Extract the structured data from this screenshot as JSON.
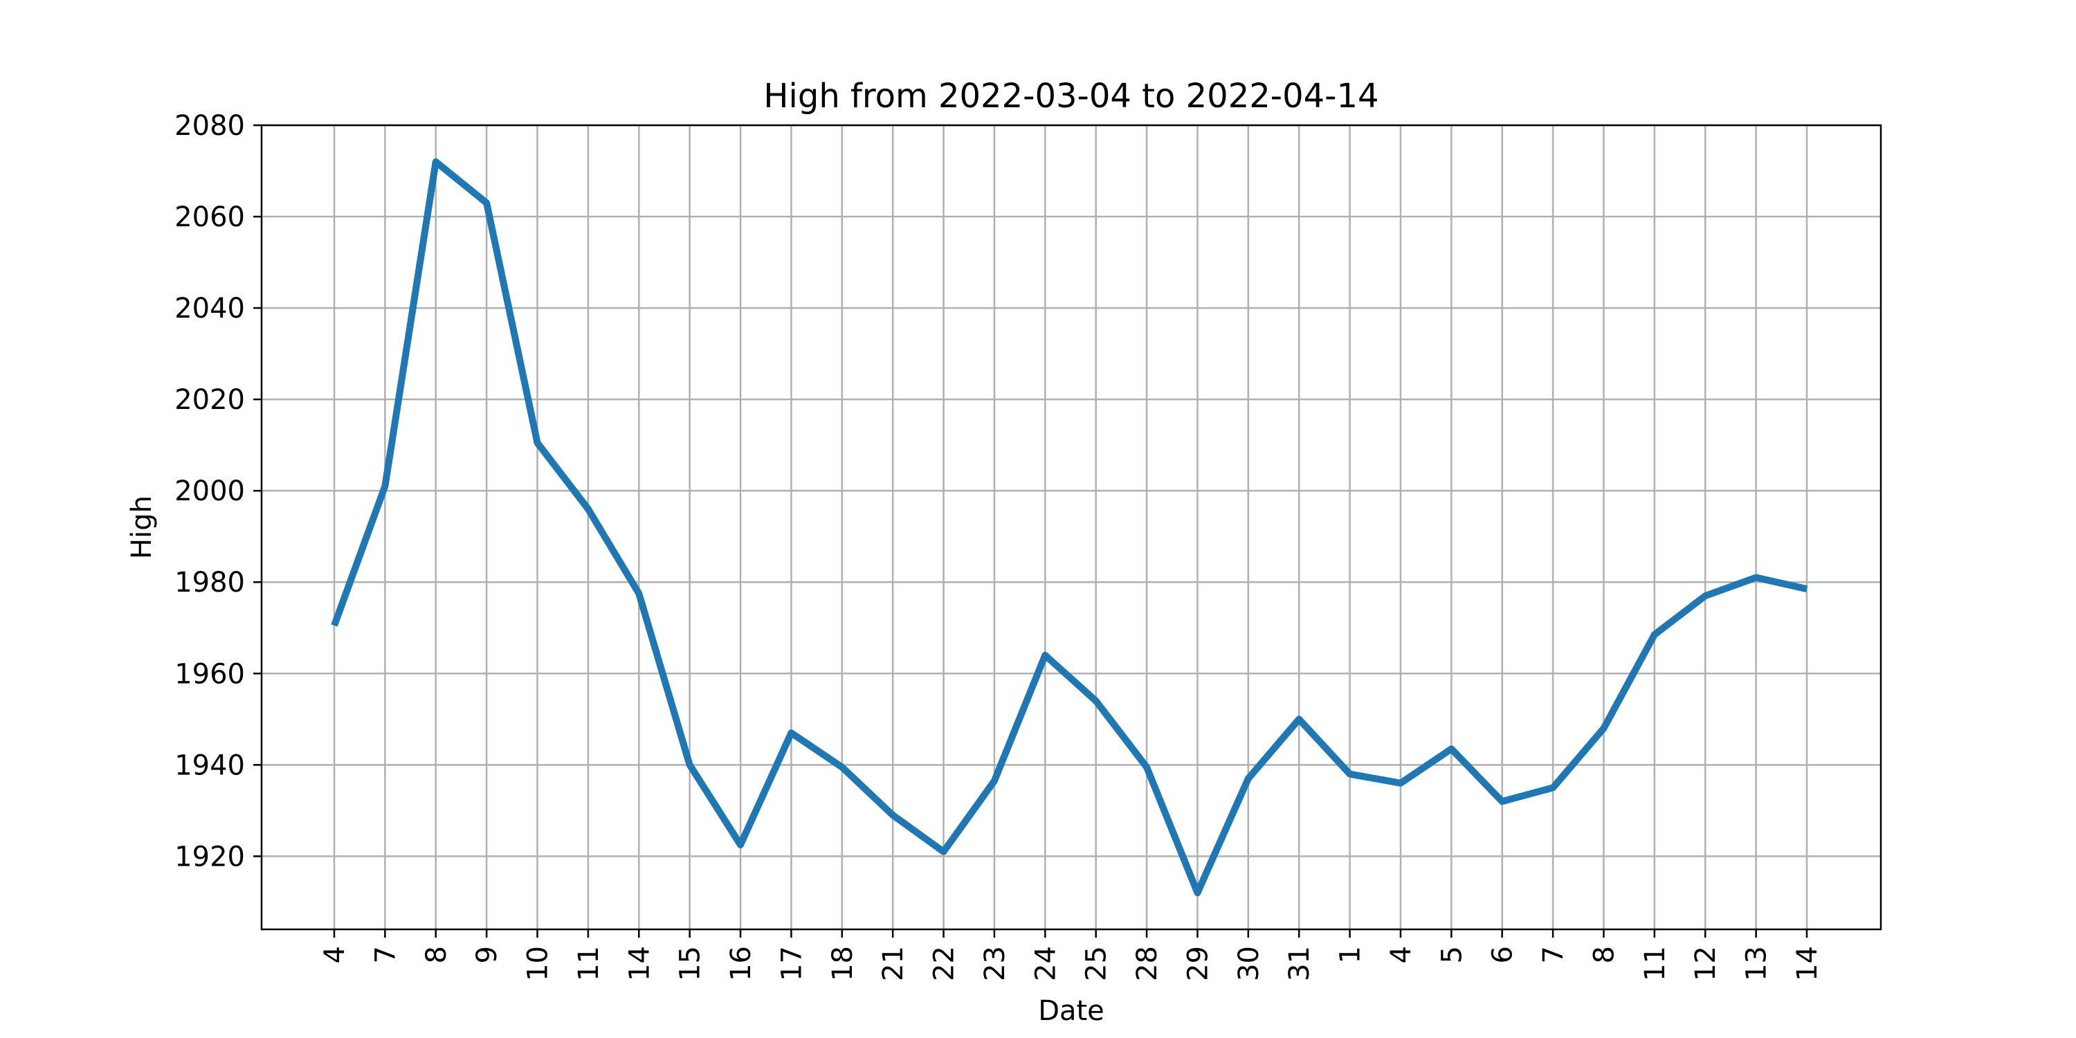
{
  "chart_data": {
    "type": "line",
    "title": "High from 2022-03-04 to 2022-04-14",
    "xlabel": "Date",
    "ylabel": "High",
    "x": [
      "2022-03-04",
      "2022-03-07",
      "2022-03-08",
      "2022-03-09",
      "2022-03-10",
      "2022-03-11",
      "2022-03-14",
      "2022-03-15",
      "2022-03-16",
      "2022-03-17",
      "2022-03-18",
      "2022-03-21",
      "2022-03-22",
      "2022-03-23",
      "2022-03-24",
      "2022-03-25",
      "2022-03-28",
      "2022-03-29",
      "2022-03-30",
      "2022-03-31",
      "2022-04-01",
      "2022-04-04",
      "2022-04-05",
      "2022-04-06",
      "2022-04-07",
      "2022-04-08",
      "2022-04-11",
      "2022-04-12",
      "2022-04-13",
      "2022-04-14"
    ],
    "x_tick_labels": [
      "4",
      "7",
      "8",
      "9",
      "10",
      "11",
      "14",
      "15",
      "16",
      "17",
      "18",
      "21",
      "22",
      "23",
      "24",
      "25",
      "28",
      "29",
      "30",
      "31",
      "1",
      "4",
      "5",
      "6",
      "7",
      "8",
      "11",
      "12",
      "13",
      "14"
    ],
    "series": [
      {
        "values": [
          1970.5,
          2001,
          2072,
          2063,
          2010.5,
          1996,
          1977.5,
          1940,
          1922.5,
          1947,
          1939.5,
          1929,
          1921,
          1936.5,
          1964,
          1954,
          1939.5,
          1912,
          1937,
          1950,
          1938,
          1936,
          1943.5,
          1932,
          1935,
          1948,
          1968.5,
          1977,
          1981,
          1978.5
        ],
        "color": "#1f77b4"
      }
    ],
    "ylim": [
      1904,
      2080
    ],
    "y_ticks": [
      1920,
      1940,
      1960,
      1980,
      2000,
      2020,
      2040,
      2060,
      2080
    ],
    "grid": true
  }
}
